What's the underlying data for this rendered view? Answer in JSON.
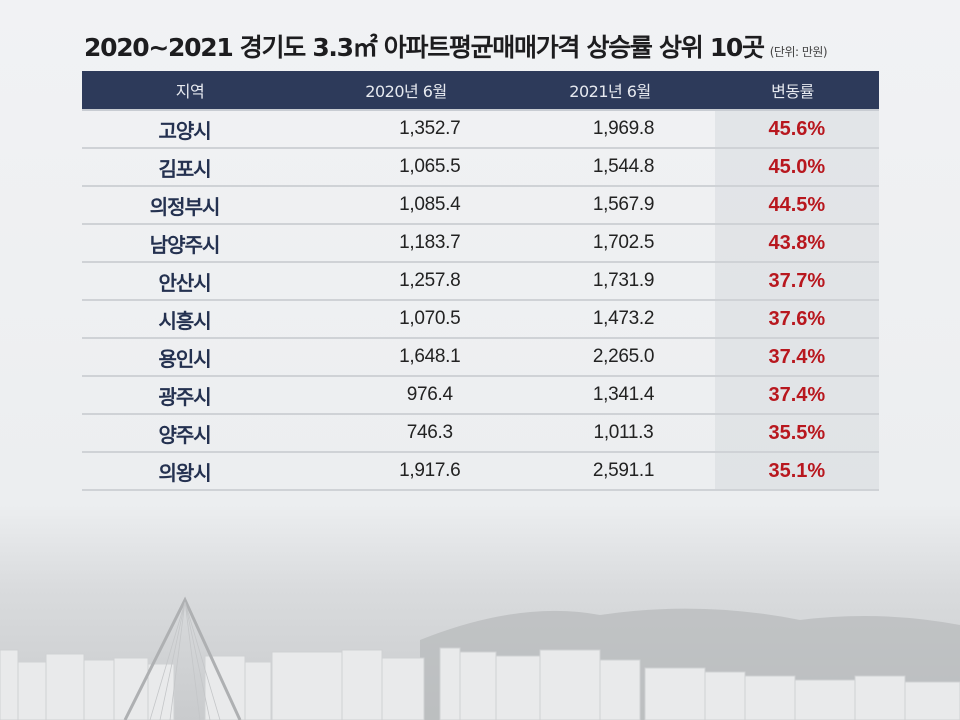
{
  "title": {
    "main": "2020~2021 경기도 3.3㎡ 아파트평균매매가격 상승률 상위 10곳",
    "unit": "(단위: 만원)"
  },
  "table": {
    "headers": [
      "지역",
      "2020년 6월",
      "2021년 6월",
      "변동률"
    ],
    "rows": [
      {
        "region": "고양시",
        "y2020": "1,352.7",
        "y2021": "1,969.8",
        "rate": "45.6%"
      },
      {
        "region": "김포시",
        "y2020": "1,065.5",
        "y2021": "1,544.8",
        "rate": "45.0%"
      },
      {
        "region": "의정부시",
        "y2020": "1,085.4",
        "y2021": "1,567.9",
        "rate": "44.5%"
      },
      {
        "region": "남양주시",
        "y2020": "1,183.7",
        "y2021": "1,702.5",
        "rate": "43.8%"
      },
      {
        "region": "안산시",
        "y2020": "1,257.8",
        "y2021": "1,731.9",
        "rate": "37.7%"
      },
      {
        "region": "시흥시",
        "y2020": "1,070.5",
        "y2021": "1,473.2",
        "rate": "37.6%"
      },
      {
        "region": "용인시",
        "y2020": "1,648.1",
        "y2021": "2,265.0",
        "rate": "37.4%"
      },
      {
        "region": "광주시",
        "y2020": "976.4",
        "y2021": "1,341.4",
        "rate": "37.4%"
      },
      {
        "region": "양주시",
        "y2020": "746.3",
        "y2021": "1,011.3",
        "rate": "35.5%"
      },
      {
        "region": "의왕시",
        "y2020": "1,917.6",
        "y2021": "2,591.1",
        "rate": "35.1%"
      }
    ]
  },
  "colors": {
    "header_bg": "#2d3a5a",
    "region_text": "#243150",
    "rate_text": "#b8171e"
  },
  "background": {
    "image": "hazy-apartment-skyline-with-cable-bridge"
  }
}
